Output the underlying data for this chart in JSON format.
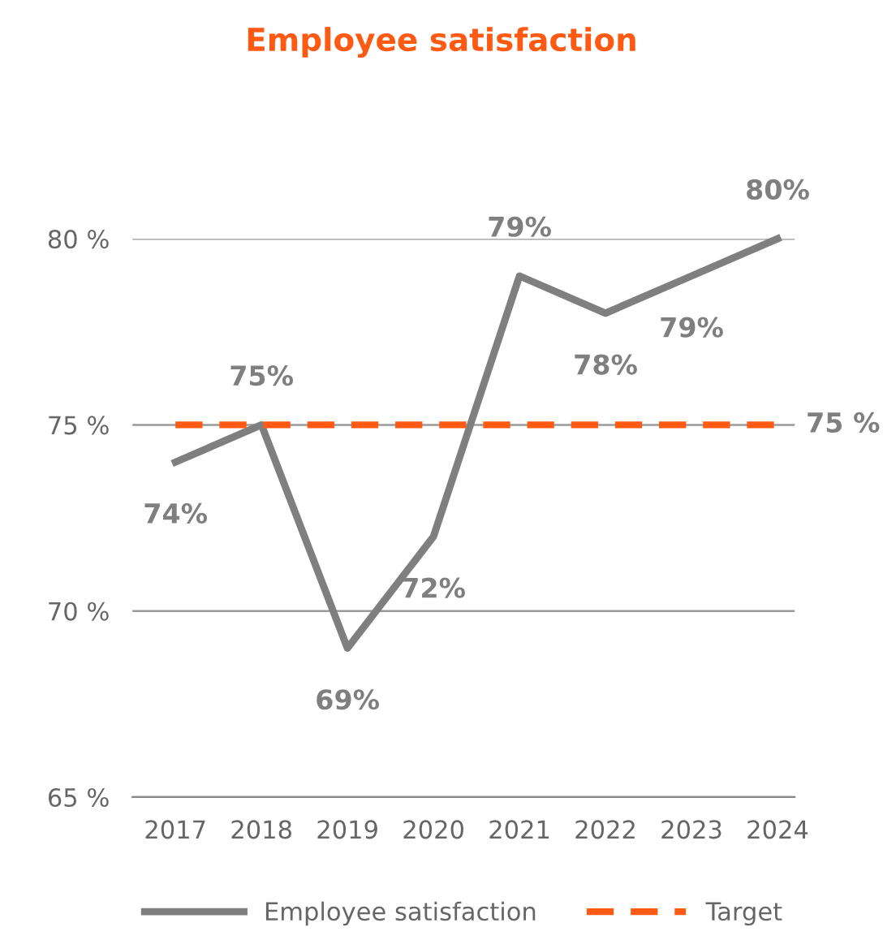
{
  "chart_data": {
    "type": "line",
    "title": "Employee satisfaction",
    "categories": [
      "2017",
      "2018",
      "2019",
      "2020",
      "2021",
      "2022",
      "2023",
      "2024"
    ],
    "series": [
      {
        "name": "Employee satisfaction",
        "color": "#7f7f7f",
        "values": [
          74,
          75,
          69,
          72,
          79,
          78,
          79,
          80
        ],
        "value_labels": [
          "74%",
          "75%",
          "69%",
          "72%",
          "79%",
          "78%",
          "79%",
          "80%"
        ],
        "line_style": "solid"
      },
      {
        "name": "Target",
        "color": "#ff5a14",
        "values": [
          75,
          75,
          75,
          75,
          75,
          75,
          75,
          75
        ],
        "value_labels": [
          null,
          null,
          null,
          null,
          null,
          null,
          null,
          "75 %"
        ],
        "line_style": "dashed"
      }
    ],
    "ylim": [
      65,
      80
    ],
    "yticks": [
      {
        "value": 65,
        "label": "65 %"
      },
      {
        "value": 70,
        "label": "70 %"
      },
      {
        "value": 75,
        "label": "75 %"
      },
      {
        "value": 80,
        "label": "80 %"
      }
    ],
    "grid": "y",
    "legend": "bottom",
    "marker": "none"
  }
}
